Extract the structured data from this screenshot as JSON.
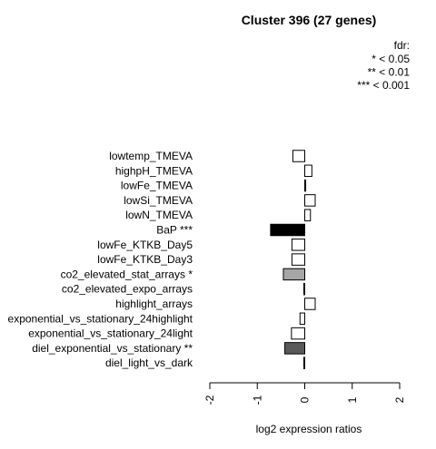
{
  "chart_data": {
    "type": "bar",
    "orientation": "horizontal",
    "title": "Cluster 396 (27 genes)",
    "legend": {
      "title": "fdr:",
      "entries": [
        "* < 0.05",
        "** < 0.01",
        "*** < 0.001"
      ],
      "placement": "top-right"
    },
    "xlabel": "log2 expression ratios",
    "xlim": [
      -2,
      2
    ],
    "xticks": [
      "-2",
      "-1",
      "0",
      "1",
      "2"
    ],
    "xtick_values": [
      -2,
      -1,
      0,
      1,
      2
    ],
    "categories": [
      "lowtemp_TMEVA",
      "highpH_TMEVA",
      "lowFe_TMEVA",
      "lowSi_TMEVA",
      "lowN_TMEVA",
      "BaP ***",
      "lowFe_KTKB_Day5",
      "lowFe_KTKB_Day3",
      "co2_elevated_stat_arrays *",
      "co2_elevated_expo_arrays",
      "highlight_arrays",
      "exponential_vs_stationary_24highlight",
      "exponential_vs_stationary_24light",
      "diel_exponential_vs_stationary **",
      "diel_light_vs_dark"
    ],
    "values": [
      -0.25,
      0.15,
      0.02,
      0.22,
      0.12,
      -0.72,
      -0.27,
      -0.27,
      -0.45,
      -0.02,
      0.22,
      -0.1,
      -0.28,
      -0.42,
      -0.02
    ],
    "bar_colors": [
      "#ffffff",
      "#ffffff",
      "#ffffff",
      "#ffffff",
      "#ffffff",
      "#000000",
      "#ffffff",
      "#ffffff",
      "#a6a6a6",
      "#ffffff",
      "#ffffff",
      "#ffffff",
      "#ffffff",
      "#595959",
      "#ffffff"
    ],
    "grid": false
  }
}
